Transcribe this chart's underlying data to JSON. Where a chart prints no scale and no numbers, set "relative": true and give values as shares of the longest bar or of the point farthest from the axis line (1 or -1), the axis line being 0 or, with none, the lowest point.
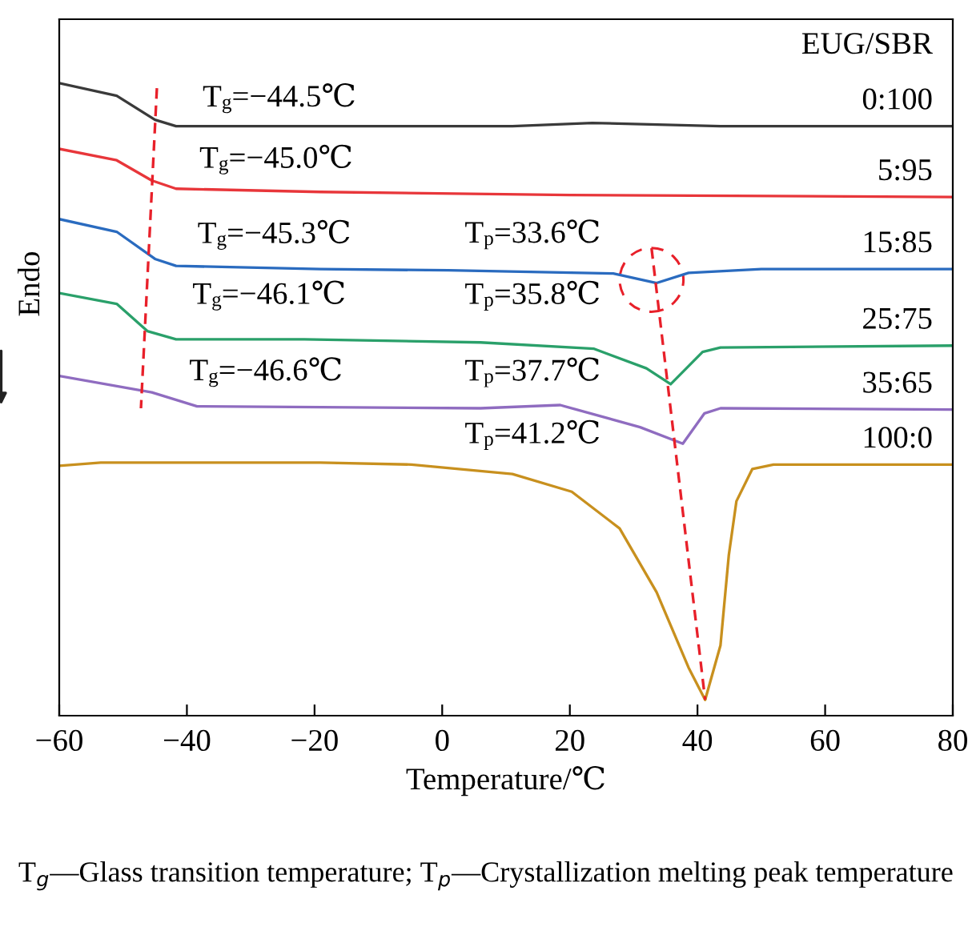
{
  "chart_data": {
    "type": "line",
    "relative": true,
    "xlabel": "Temperature/℃",
    "ylabel": "Endo",
    "legend_title": "EUG/SBR",
    "xlim": [
      -60,
      80
    ],
    "xticks": [
      {
        "value": -60,
        "label": "−60"
      },
      {
        "value": -40,
        "label": "−40"
      },
      {
        "value": -20,
        "label": "−20"
      },
      0,
      20,
      40,
      60,
      80
    ],
    "grid": false,
    "legend": false,
    "marker": "none",
    "line_style": "solid",
    "series": [
      {
        "name": "0:100",
        "color": "#3a3a3a",
        "x": [
          -60,
          -51,
          -45,
          -41.7,
          -19.1,
          11,
          23.5,
          43.6,
          80
        ],
        "values": [
          1.0,
          0.98,
          0.942,
          0.932,
          0.932,
          0.932,
          0.937,
          0.932,
          0.932
        ]
      },
      {
        "name": "5:95",
        "color": "#e8363a",
        "x": [
          -60,
          -51,
          -45.5,
          -41.7,
          -19.1,
          20,
          80
        ],
        "values": [
          0.896,
          0.878,
          0.846,
          0.833,
          0.828,
          0.823,
          0.82
        ]
      },
      {
        "name": "15:85",
        "color": "#2a6bbf",
        "x": [
          -60,
          -51,
          -45,
          -41.7,
          -19.1,
          1,
          26.8,
          33.6,
          38.6,
          50,
          80
        ],
        "values": [
          0.785,
          0.765,
          0.722,
          0.711,
          0.706,
          0.704,
          0.699,
          0.684,
          0.7,
          0.706,
          0.706
        ]
      },
      {
        "name": "25:75",
        "color": "#2aa06a",
        "x": [
          -60,
          -51,
          -46.2,
          -41.7,
          -21.6,
          6,
          23.8,
          32,
          35.8,
          40.8,
          43.6,
          80
        ],
        "values": [
          0.668,
          0.651,
          0.608,
          0.595,
          0.595,
          0.59,
          0.58,
          0.549,
          0.524,
          0.575,
          0.582,
          0.585
        ]
      },
      {
        "name": "35:65",
        "color": "#8f6cc0",
        "x": [
          -60,
          -45.5,
          -38.4,
          6,
          18.5,
          31,
          37.7,
          41.1,
          43.6,
          80
        ],
        "values": [
          0.537,
          0.511,
          0.489,
          0.486,
          0.491,
          0.456,
          0.43,
          0.478,
          0.486,
          0.484
        ]
      },
      {
        "name": "100:0",
        "color": "#c8901e",
        "x": [
          -60,
          -53.5,
          -19.1,
          -4.8,
          11,
          20.3,
          27.8,
          33.6,
          38.6,
          41.2,
          43.6,
          44.9,
          46.1,
          48.6,
          51.9,
          80
        ],
        "values": [
          0.395,
          0.4,
          0.4,
          0.397,
          0.382,
          0.354,
          0.296,
          0.195,
          0.076,
          0.025,
          0.111,
          0.253,
          0.339,
          0.39,
          0.397,
          0.397
        ]
      },
      {
        "color": "#e8202a",
        "line_style": "dashed",
        "x": [
          -44.7,
          -47.2
        ],
        "values": [
          0.992,
          0.486
        ]
      },
      {
        "color": "#e8202a",
        "line_style": "dashed",
        "x": [
          32.8,
          41.2
        ],
        "values": [
          0.739,
          0.025
        ]
      }
    ],
    "annotations": [
      {
        "text": "T$_{g}$=−44.5℃",
        "x": -44.5,
        "y": 0.975
      },
      {
        "text": "T$_{g}$=−45.0℃",
        "x": -45.0,
        "y": 0.878
      },
      {
        "text": "T$_{g}$=−45.3℃",
        "x": -45.3,
        "y": 0.759
      },
      {
        "text": "T$_{g}$=−46.1℃",
        "x": -46.1,
        "y": 0.663
      },
      {
        "text": "T$_{g}$=−46.6℃",
        "x": -46.6,
        "y": 0.542
      },
      "T$_{p}$=33.6℃",
      "T$_{p}$=35.8℃",
      "T$_{p}$=37.7℃",
      "T$_{p}$=41.2℃",
      "T$_{g}$—Glass transition temperature; T$_{p}$—Crystallization melting peak temperature"
    ]
  }
}
